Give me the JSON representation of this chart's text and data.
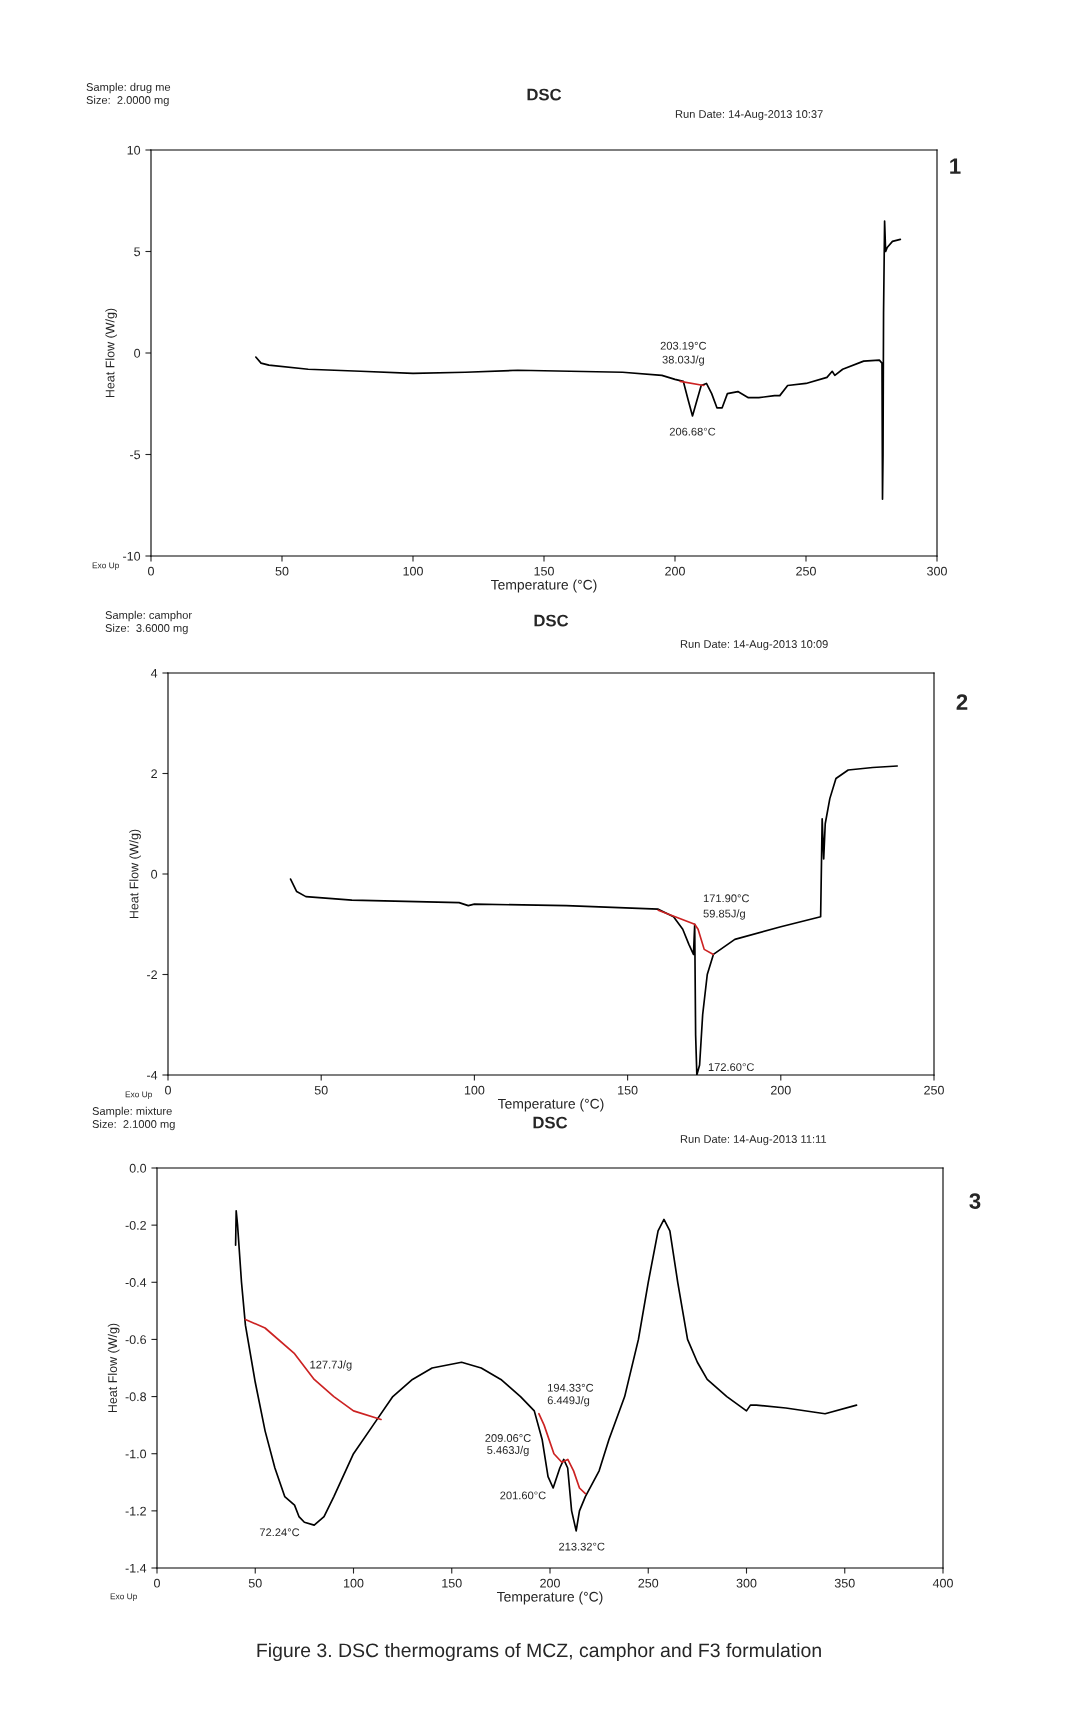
{
  "chart_data": [
    {
      "type": "line",
      "title": "DSC",
      "xlabel": "Temperature (°C)",
      "ylabel": "Heat Flow (W/g)",
      "xlim": [
        0,
        300
      ],
      "xticks": [
        0,
        50,
        100,
        150,
        200,
        250,
        300
      ],
      "ylim": [
        -10,
        10
      ],
      "yticks": [
        -10,
        -5,
        0,
        5,
        10
      ],
      "series": [
        {
          "color": "#000000",
          "x": [
            40,
            42,
            45,
            60,
            80,
            100,
            120,
            140,
            160,
            180,
            195,
            200,
            203.19,
            205,
            206.68,
            208,
            210,
            212,
            214,
            216,
            218,
            220,
            224,
            228,
            232,
            238,
            240,
            243,
            250,
            258,
            260,
            261,
            264,
            272,
            278,
            279,
            279.2,
            279.4,
            279.6,
            280,
            280.4,
            281,
            283,
            286
          ],
          "values": [
            -0.2,
            -0.5,
            -0.6,
            -0.8,
            -0.9,
            -1.0,
            -0.95,
            -0.85,
            -0.9,
            -0.95,
            -1.1,
            -1.3,
            -1.4,
            -2.3,
            -3.1,
            -2.5,
            -1.6,
            -1.5,
            -2.0,
            -2.7,
            -2.7,
            -2.0,
            -1.9,
            -2.2,
            -2.2,
            -2.1,
            -2.1,
            -1.6,
            -1.5,
            -1.2,
            -0.9,
            -1.1,
            -0.8,
            -0.4,
            -0.35,
            -0.5,
            -7.2,
            -5.0,
            2.0,
            6.5,
            5.0,
            5.2,
            5.5,
            5.6
          ]
        },
        {
          "color": "#cc2222",
          "x": [
            202,
            211
          ],
          "values": [
            -1.4,
            -1.6
          ]
        }
      ],
      "annotations": [
        "Sample: drug me",
        "Size:  2.0000 mg",
        "Run Date: 14-Aug-2013 10:37",
        "Exo Up",
        "1",
        {
          "text": "203.19°C",
          "x": 203.19,
          "y": -1.4
        },
        {
          "text": "38.03J/g",
          "x": 203.19,
          "y": -1.4
        },
        {
          "text": "206.68°C",
          "x": 206.68,
          "y": -3.1
        }
      ]
    },
    {
      "type": "line",
      "title": "DSC",
      "xlabel": "Temperature (°C)",
      "ylabel": "Heat Flow (W/g)",
      "xlim": [
        0,
        250
      ],
      "xticks": [
        0,
        50,
        100,
        150,
        200,
        250
      ],
      "ylim": [
        -4,
        4
      ],
      "yticks": [
        -4,
        -2,
        0,
        2,
        4
      ],
      "series": [
        {
          "color": "#000000",
          "x": [
            40,
            42,
            45,
            60,
            95,
            98,
            100,
            130,
            160,
            165,
            168,
            170,
            171.5,
            171.9,
            172.2,
            172.6,
            173.5,
            174.5,
            176,
            178,
            185,
            200,
            213,
            213.5,
            214,
            214.5,
            216,
            218,
            222,
            230,
            238
          ],
          "values": [
            -0.1,
            -0.35,
            -0.45,
            -0.52,
            -0.57,
            -0.63,
            -0.6,
            -0.63,
            -0.7,
            -0.85,
            -1.1,
            -1.4,
            -1.6,
            -1.0,
            -3.2,
            -4.0,
            -3.8,
            -2.8,
            -2.0,
            -1.6,
            -1.3,
            -1.05,
            -0.85,
            1.1,
            0.3,
            1.0,
            1.5,
            1.9,
            2.07,
            2.12,
            2.15
          ]
        },
        {
          "color": "#cc2222",
          "x": [
            160,
            171.9,
            173,
            175,
            178
          ],
          "values": [
            -0.72,
            -1.0,
            -1.1,
            -1.5,
            -1.6
          ]
        }
      ],
      "annotations": [
        "Sample: camphor",
        "Size:  3.6000 mg",
        "Run Date: 14-Aug-2013 10:09",
        "Exo Up",
        "2",
        {
          "text": "171.90°C",
          "x": 171.9,
          "y": -1.0
        },
        {
          "text": "59.85J/g",
          "x": 171.9,
          "y": -1.0
        },
        {
          "text": "172.60°C",
          "x": 172.6,
          "y": -4.0
        }
      ]
    },
    {
      "type": "line",
      "title": "DSC",
      "xlabel": "Temperature (°C)",
      "ylabel": "Heat Flow (W/g)",
      "xlim": [
        0,
        400
      ],
      "xticks": [
        0,
        50,
        100,
        150,
        200,
        250,
        300,
        350,
        400
      ],
      "ylim": [
        -1.4,
        0.0
      ],
      "yticks": [
        {
          "value": -1.4,
          "label": "-1.4"
        },
        {
          "value": -1.2,
          "label": "-1.2"
        },
        {
          "value": -1.0,
          "label": "-1.0"
        },
        {
          "value": -0.8,
          "label": "-0.8"
        },
        {
          "value": -0.6,
          "label": "-0.6"
        },
        {
          "value": -0.4,
          "label": "-0.4"
        },
        {
          "value": -0.2,
          "label": "-0.2"
        },
        {
          "value": 0.0,
          "label": "0.0"
        }
      ],
      "series": [
        {
          "color": "#000000",
          "x": [
            40,
            40.3,
            41,
            43,
            45,
            50,
            55,
            60,
            65,
            70,
            72.24,
            75,
            80,
            85,
            90,
            100,
            110,
            120,
            130,
            140,
            155,
            165,
            175,
            185,
            192,
            196,
            199,
            201.6,
            205,
            207,
            209,
            211,
            213.32,
            215,
            218,
            225,
            230,
            238,
            245,
            250,
            255,
            258,
            261,
            265,
            270,
            275,
            280,
            290,
            300,
            302,
            305,
            320,
            340,
            356
          ],
          "values": [
            -0.27,
            -0.15,
            -0.2,
            -0.4,
            -0.55,
            -0.75,
            -0.92,
            -1.05,
            -1.15,
            -1.18,
            -1.22,
            -1.24,
            -1.25,
            -1.22,
            -1.15,
            -1.0,
            -0.9,
            -0.8,
            -0.74,
            -0.7,
            -0.68,
            -0.7,
            -0.74,
            -0.8,
            -0.85,
            -0.95,
            -1.08,
            -1.12,
            -1.05,
            -1.02,
            -1.05,
            -1.2,
            -1.27,
            -1.2,
            -1.15,
            -1.06,
            -0.95,
            -0.8,
            -0.6,
            -0.4,
            -0.22,
            -0.18,
            -0.22,
            -0.4,
            -0.6,
            -0.68,
            -0.74,
            -0.8,
            -0.85,
            -0.83,
            -0.83,
            -0.84,
            -0.86,
            -0.83
          ]
        },
        {
          "color": "#cc2222",
          "x": [
            45,
            55,
            70,
            80,
            90,
            100,
            114
          ],
          "values": [
            -0.53,
            -0.56,
            -0.65,
            -0.74,
            -0.8,
            -0.85,
            -0.88
          ]
        },
        {
          "color": "#cc2222",
          "x": [
            194.33,
            197,
            202,
            206,
            209.06,
            212,
            215,
            218
          ],
          "values": [
            -0.86,
            -0.9,
            -1.0,
            -1.03,
            -1.02,
            -1.06,
            -1.12,
            -1.14
          ]
        }
      ],
      "annotations": [
        "Sample: mixture",
        "Size:  2.1000 mg",
        "Run Date: 14-Aug-2013 11:11",
        "Exo Up",
        "3",
        "Figure 3. DSC thermograms of MCZ, camphor and F3 formulation",
        "209.06°C",
        "5.463J/g",
        {
          "text": "127.7J/g",
          "x": 80,
          "y": -0.74
        },
        {
          "text": "194.33°C",
          "x": 194.33,
          "y": -0.86
        },
        {
          "text": "6.449J/g",
          "x": 194.33,
          "y": -0.86
        },
        {
          "text": "201.60°C",
          "x": 201.6,
          "y": -1.12
        },
        {
          "text": "72.24°C",
          "x": 72.24,
          "y": -1.22
        },
        {
          "text": "213.32°C",
          "x": 213.32,
          "y": -1.27
        }
      ]
    }
  ]
}
